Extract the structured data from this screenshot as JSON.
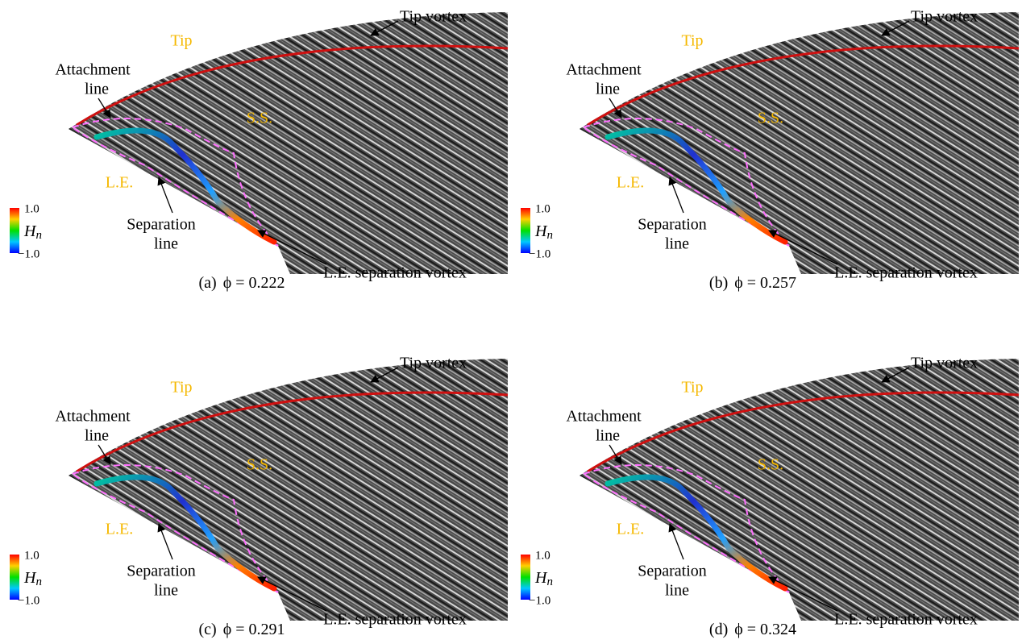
{
  "panels": [
    {
      "caption": "(a)",
      "phi": "ϕ = 0.222",
      "labels": {
        "tip_vortex": "Tip vortex",
        "tip": "Tip",
        "attachment": [
          "Attachment",
          "line"
        ],
        "ss": "S.S.",
        "le": "L.E.",
        "separation": [
          "Separation",
          "line"
        ],
        "le_vortex": "L.E. separation vortex"
      },
      "colorbar": {
        "max": "1.0",
        "symbol": "H",
        "subscript": "n",
        "min": "−1.0"
      }
    },
    {
      "caption": "(b)",
      "phi": "ϕ = 0.257",
      "labels": {
        "tip_vortex": "Tip vortex",
        "tip": "Tip",
        "attachment": [
          "Attachment",
          "line"
        ],
        "ss": "S.S.",
        "le": "L.E.",
        "separation": [
          "Separation",
          "line"
        ],
        "le_vortex": "L.E. separation vortex"
      },
      "colorbar": {
        "max": "1.0",
        "symbol": "H",
        "subscript": "n",
        "min": "−1.0"
      }
    },
    {
      "caption": "(c)",
      "phi": "ϕ = 0.291",
      "labels": {
        "tip_vortex": "Tip vortex",
        "tip": "Tip",
        "attachment": [
          "Attachment",
          "line"
        ],
        "ss": "S.S.",
        "le": "L.E.",
        "separation": [
          "Separation",
          "line"
        ],
        "le_vortex": "L.E. separation vortex"
      },
      "colorbar": {
        "max": "1.0",
        "symbol": "H",
        "subscript": "n",
        "min": "−1.0"
      }
    },
    {
      "caption": "(d)",
      "phi": "ϕ = 0.324",
      "labels": {
        "tip_vortex": "Tip vortex",
        "tip": "Tip",
        "attachment": [
          "Attachment",
          "line"
        ],
        "ss": "S.S.",
        "le": "L.E.",
        "separation": [
          "Separation",
          "line"
        ],
        "le_vortex": "L.E. separation vortex"
      },
      "colorbar": {
        "max": "1.0",
        "symbol": "H",
        "subscript": "n",
        "min": "−1.0"
      }
    }
  ]
}
